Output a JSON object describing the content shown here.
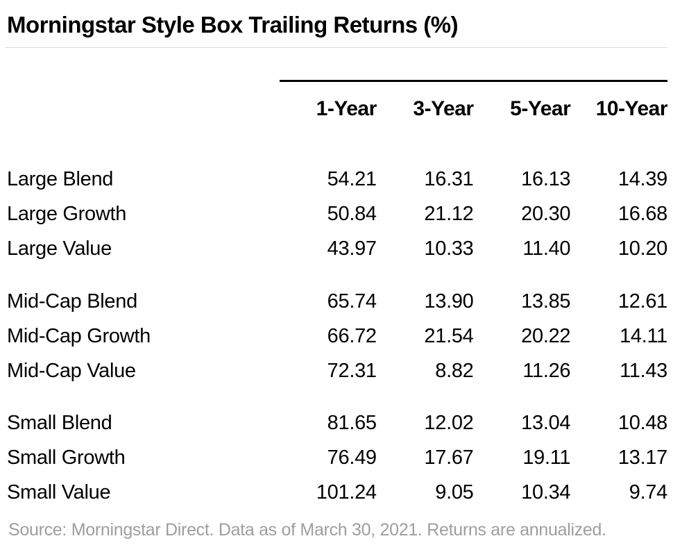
{
  "page": {
    "title": "Morningstar Style Box Trailing Returns (%)",
    "source": "Source: Morningstar Direct. Data as of March 30, 2021. Returns are annualized."
  },
  "chart_data": {
    "type": "table",
    "title": "Morningstar Style Box Trailing Returns (%)",
    "columns": [
      "1-Year",
      "3-Year",
      "5-Year",
      "10-Year"
    ],
    "group_starts": [
      3,
      6
    ],
    "rows": [
      {
        "label": "Large Blend",
        "values": [
          "54.21",
          "16.31",
          "16.13",
          "14.39"
        ]
      },
      {
        "label": "Large Growth",
        "values": [
          "50.84",
          "21.12",
          "20.30",
          "16.68"
        ]
      },
      {
        "label": "Large Value",
        "values": [
          "43.97",
          "10.33",
          "11.40",
          "10.20"
        ]
      },
      {
        "label": "Mid-Cap Blend",
        "values": [
          "65.74",
          "13.90",
          "13.85",
          "12.61"
        ]
      },
      {
        "label": "Mid-Cap Growth",
        "values": [
          "66.72",
          "21.54",
          "20.22",
          "14.11"
        ]
      },
      {
        "label": "Mid-Cap Value",
        "values": [
          "72.31",
          "8.82",
          "11.26",
          "11.43"
        ]
      },
      {
        "label": "Small Blend",
        "values": [
          "81.65",
          "12.02",
          "13.04",
          "10.48"
        ]
      },
      {
        "label": "Small Growth",
        "values": [
          "76.49",
          "17.67",
          "19.11",
          "13.17"
        ]
      },
      {
        "label": "Small Value",
        "values": [
          "101.24",
          "9.05",
          "10.34",
          "9.74"
        ]
      }
    ],
    "source_note": "Source: Morningstar Direct. Data as of March 30, 2021. Returns are annualized."
  }
}
